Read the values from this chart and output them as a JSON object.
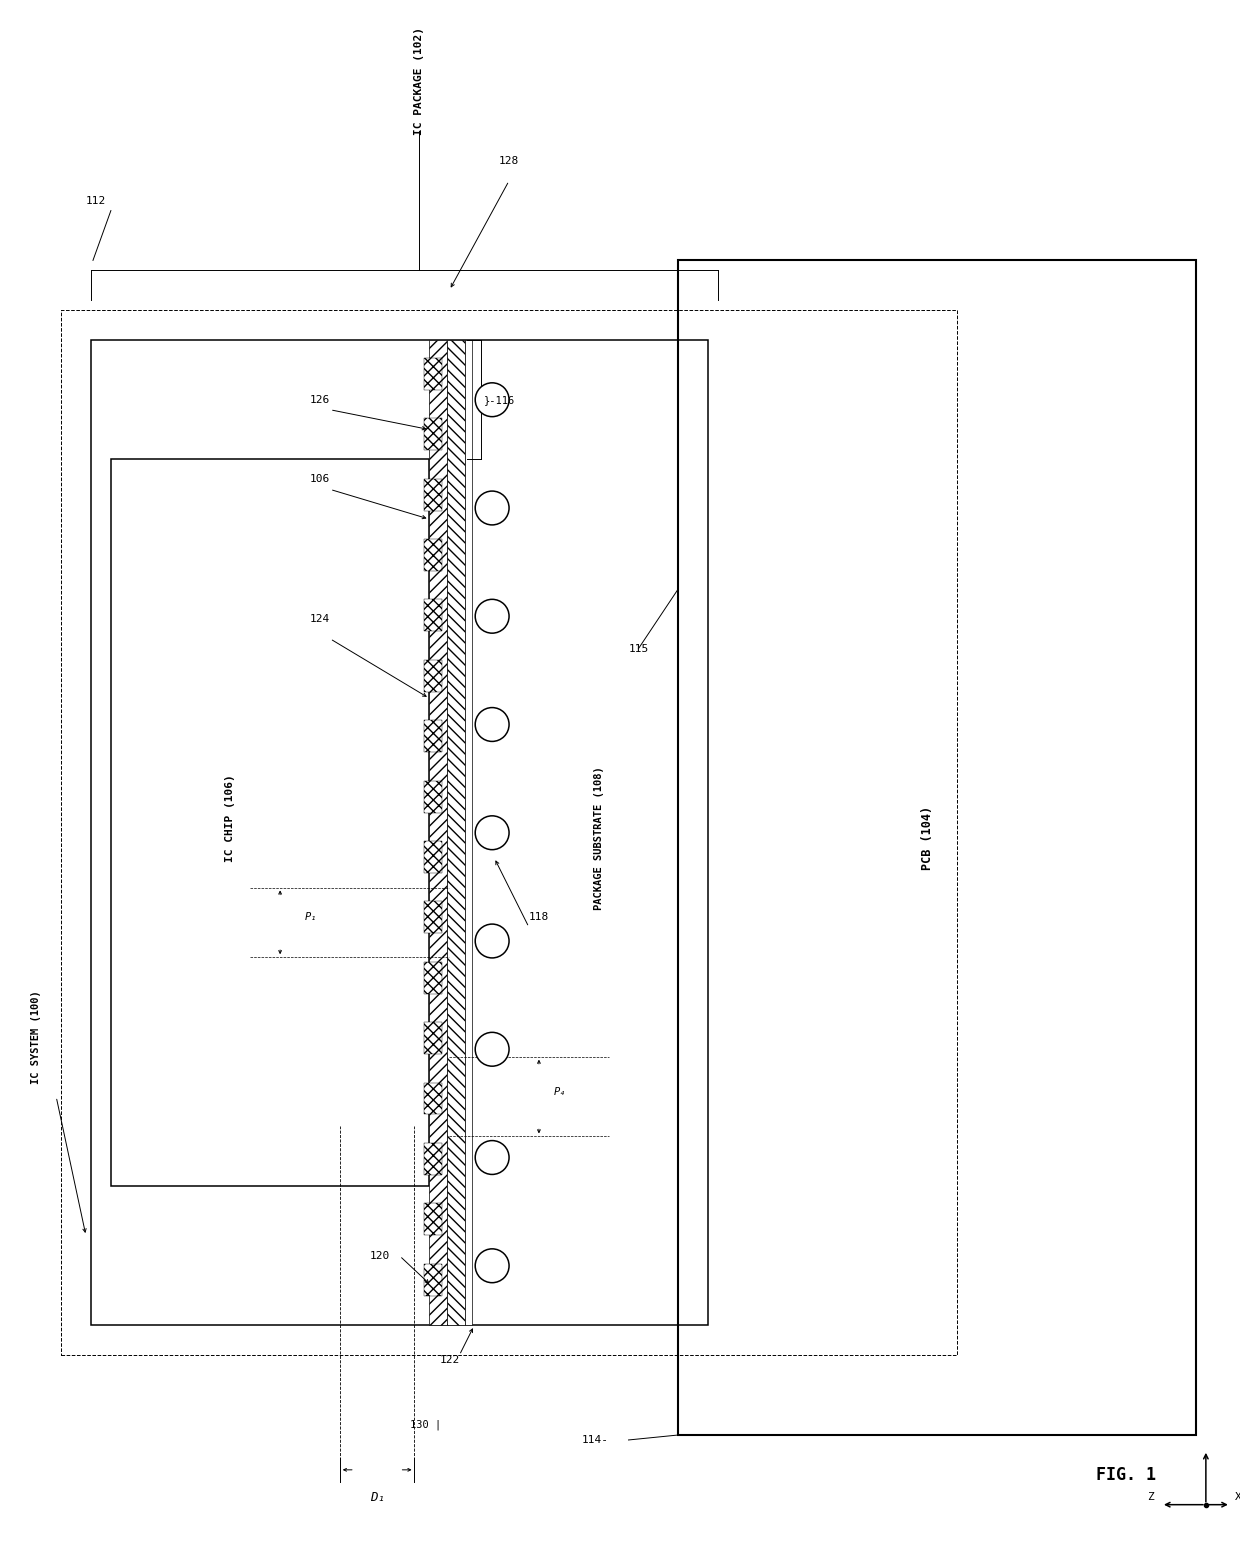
{
  "background_color": "#ffffff",
  "line_color": "#000000",
  "fig_width": 12.4,
  "fig_height": 15.58,
  "labels": {
    "ic_system": "IC SYSTEM (100)",
    "ic_package": "IC PACKAGE (102)",
    "ic_chip": "IC CHIP (106)",
    "package_substrate": "PACKAGE SUBSTRATE (108)",
    "pcb": "PCB (104)",
    "fig_label": "FIG. 1",
    "l112": "112",
    "l114": "114",
    "l115": "115",
    "l116": "116",
    "l118": "118",
    "l120": "120",
    "l122": "122",
    "l124": "124",
    "l126": "126",
    "l128": "128",
    "l130": "130",
    "D1": "D₁",
    "P1": "P₁",
    "P4": "P₄"
  }
}
